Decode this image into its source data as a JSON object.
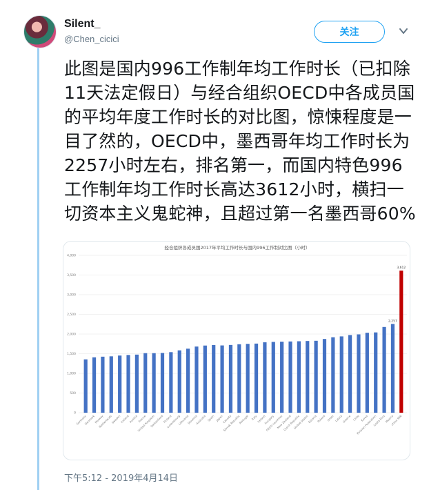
{
  "user": {
    "name": "Silent_",
    "handle": "@Chen_cicici",
    "follow_label": "关注"
  },
  "tweet": {
    "text": "此图是国内996工作制年均工作时长（已扣除11天法定假日）与经合组织OECD中各成员国的平均年度工作时长的对比图，惊悚程度是一目了然的，OECD中，墨西哥年均工作时长为2257小时左右，排名第一，而国内特色996工作制年均工作时长高达3612小时，横扫一切资本主义鬼蛇神，且超过第一名墨西哥60%",
    "timestamp": "下午5:12 - 2019年4月14日"
  },
  "colors": {
    "bar": "#4472c4",
    "highlight": "#c00000",
    "accent": "#1da1f2"
  },
  "chart_data": {
    "type": "bar",
    "title": "经合组织各成员国2017年平均工作时长与国内996工作制对比图（小时）",
    "ylim": [
      0,
      4000
    ],
    "yticks": [
      0,
      500,
      1000,
      1500,
      2000,
      2500,
      3000,
      3500,
      4000
    ],
    "ytick_labels": [
      "0",
      "500",
      "1,000",
      "1,500",
      "2,000",
      "2,500",
      "3,000",
      "3,500",
      "4,000"
    ],
    "categories": [
      "Germany",
      "Denmark",
      "Norway",
      "Netherlands",
      "Sweden",
      "Iceland",
      "Austria",
      "France",
      "United Kingdom",
      "Switzerland",
      "Finland",
      "Luxembourg",
      "Lithuania",
      "Slovenia",
      "Australia",
      "Spain",
      "Japan",
      "Canada",
      "Slovak Republic",
      "Portugal",
      "Italy",
      "Ireland",
      "Hungary",
      "OECD countries",
      "New Zealand",
      "Czech Republic",
      "United States",
      "Estonia",
      "Poland",
      "Israel",
      "Latvia",
      "Greece",
      "Chile",
      "Korea",
      "Russian Federation",
      "Costa Rica",
      "Mexico",
      "china 996"
    ],
    "values": [
      1356,
      1408,
      1424,
      1433,
      1453,
      1467,
      1477,
      1514,
      1514,
      1519,
      1539,
      1585,
      1628,
      1682,
      1707,
      1719,
      1710,
      1722,
      1740,
      1750,
      1757,
      1790,
      1800,
      1806,
      1811,
      1816,
      1822,
      1828,
      1874,
      1918,
      1940,
      1974,
      1991,
      2032,
      2041,
      2179,
      2257,
      3612
    ],
    "value_labels": [
      "",
      "",
      "",
      "",
      "",
      "",
      "",
      "",
      "",
      "",
      "",
      "",
      "",
      "",
      "",
      "",
      "",
      "",
      "",
      "",
      "",
      "",
      "",
      "",
      "",
      "",
      "",
      "",
      "",
      "",
      "",
      "",
      "",
      "",
      "",
      "",
      "2,257",
      "3,612"
    ],
    "highlight_index": 37,
    "grid": true,
    "legend": "none"
  }
}
